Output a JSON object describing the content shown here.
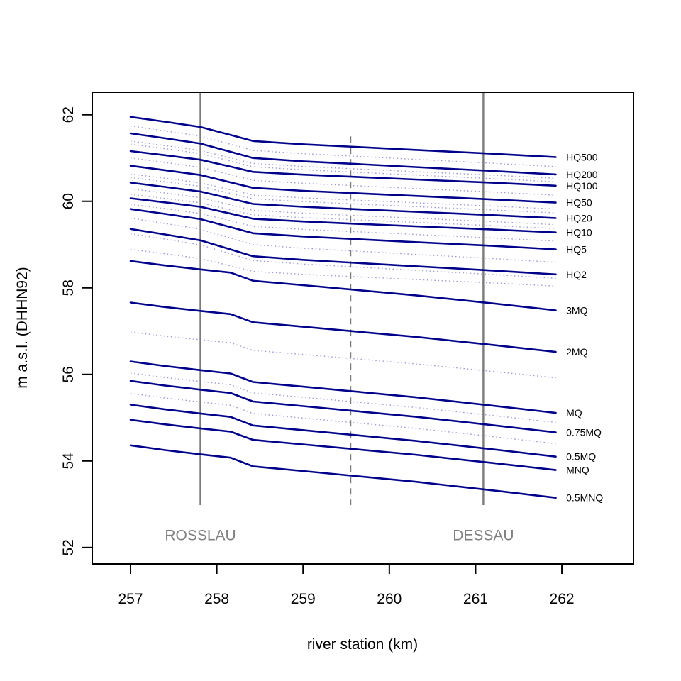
{
  "chart_data": {
    "type": "line",
    "title": "",
    "xlabel": "river station (km)",
    "ylabel": "m a.s.l. (DHHN92)",
    "x_ticks": [
      257,
      258,
      259,
      260,
      261,
      262
    ],
    "y_ticks": [
      52,
      54,
      56,
      58,
      60,
      62
    ],
    "xlim": [
      256.556,
      262.83
    ],
    "ylim": [
      51.62,
      62.52
    ],
    "grid": false,
    "legend_position": "labels-at-line-ends-right",
    "line_x": [
      257.0,
      257.4,
      257.81,
      258.16,
      258.42,
      259.0,
      259.6,
      260.3,
      261.2,
      261.93
    ],
    "label_x_km": 262.05,
    "profiles": {
      "upper": [
        0,
        0.12,
        0.25,
        0.45,
        0.6,
        0.68,
        0.745,
        0.82,
        0.915,
        1.0
      ],
      "lower": [
        0,
        0.09,
        0.17,
        0.235,
        0.4,
        0.49,
        0.585,
        0.695,
        0.86,
        1.0
      ]
    },
    "series": [
      {
        "name": "HQ500",
        "start": 61.95,
        "end": 61.02,
        "profile": "upper",
        "style": "solid"
      },
      {
        "name": "HQ200",
        "start": 61.57,
        "end": 60.62,
        "profile": "upper",
        "style": "solid"
      },
      {
        "name": "HQ100",
        "start": 61.16,
        "end": 60.36,
        "profile": "upper",
        "style": "solid"
      },
      {
        "name": "HQ50",
        "start": 60.82,
        "end": 59.97,
        "profile": "upper",
        "style": "solid"
      },
      {
        "name": "HQ20",
        "start": 60.43,
        "end": 59.61,
        "profile": "upper",
        "style": "solid"
      },
      {
        "name": "HQ10",
        "start": 60.07,
        "end": 59.28,
        "profile": "upper",
        "style": "solid"
      },
      {
        "name": "HQ5",
        "start": 59.82,
        "end": 58.89,
        "profile": "upper",
        "style": "solid"
      },
      {
        "name": "HQ2",
        "start": 59.36,
        "end": 58.31,
        "profile": "upper",
        "style": "solid"
      },
      {
        "name": "3MQ",
        "start": 58.62,
        "end": 57.48,
        "profile": "lower",
        "style": "solid"
      },
      {
        "name": "2MQ",
        "start": 57.66,
        "end": 56.52,
        "profile": "lower",
        "style": "solid"
      },
      {
        "name": "MQ",
        "start": 56.3,
        "end": 55.11,
        "profile": "lower",
        "style": "solid"
      },
      {
        "name": "0.75MQ",
        "start": 55.85,
        "end": 54.66,
        "profile": "lower",
        "style": "solid"
      },
      {
        "name": "0.5MQ",
        "start": 55.3,
        "end": 54.1,
        "profile": "lower",
        "style": "solid"
      },
      {
        "name": "MNQ",
        "start": 54.95,
        "end": 53.79,
        "profile": "lower",
        "style": "solid"
      },
      {
        "name": "0.5MNQ",
        "start": 54.36,
        "end": 53.15,
        "profile": "lower",
        "style": "solid"
      }
    ],
    "dotted_series": [
      {
        "start": 61.74,
        "end": 60.8,
        "profile": "upper"
      },
      {
        "start": 61.39,
        "end": 60.53,
        "profile": "upper"
      },
      {
        "start": 61.32,
        "end": 60.45,
        "profile": "upper"
      },
      {
        "start": 61.0,
        "end": 60.14,
        "profile": "upper"
      },
      {
        "start": 60.63,
        "end": 59.82,
        "profile": "upper"
      },
      {
        "start": 60.55,
        "end": 59.73,
        "profile": "upper"
      },
      {
        "start": 60.29,
        "end": 59.46,
        "profile": "upper"
      },
      {
        "start": 60.16,
        "end": 59.37,
        "profile": "upper"
      },
      {
        "start": 59.93,
        "end": 59.08,
        "profile": "upper"
      },
      {
        "start": 59.61,
        "end": 58.59,
        "profile": "upper"
      },
      {
        "start": 59.25,
        "end": 58.22,
        "profile": "upper"
      },
      {
        "start": 58.89,
        "end": 58.04,
        "profile": "upper"
      },
      {
        "start": 56.98,
        "end": 55.92,
        "profile": "lower"
      },
      {
        "start": 56.03,
        "end": 54.89,
        "profile": "lower"
      },
      {
        "start": 55.56,
        "end": 54.4,
        "profile": "lower"
      }
    ],
    "station_markers": [
      {
        "label": "ROSSLAU",
        "km": 257.81,
        "line_style": "solid",
        "y_top": 62.52,
        "y_bottom": 52.98,
        "label_y": 52.28
      },
      {
        "label": "",
        "km": 259.55,
        "line_style": "dashed",
        "y_top": 61.5,
        "y_bottom": 52.98,
        "label_y": null
      },
      {
        "label": "DESSAU",
        "km": 261.09,
        "line_style": "solid",
        "y_top": 62.52,
        "y_bottom": 52.98,
        "label_y": 52.28
      }
    ],
    "colors": {
      "solid_line": "#00008b",
      "dotted_line": "#9c9cd8",
      "marker_line": "#7b7b7b",
      "marker_text": "#808080",
      "axis": "#000000",
      "background": "#ffffff"
    }
  }
}
